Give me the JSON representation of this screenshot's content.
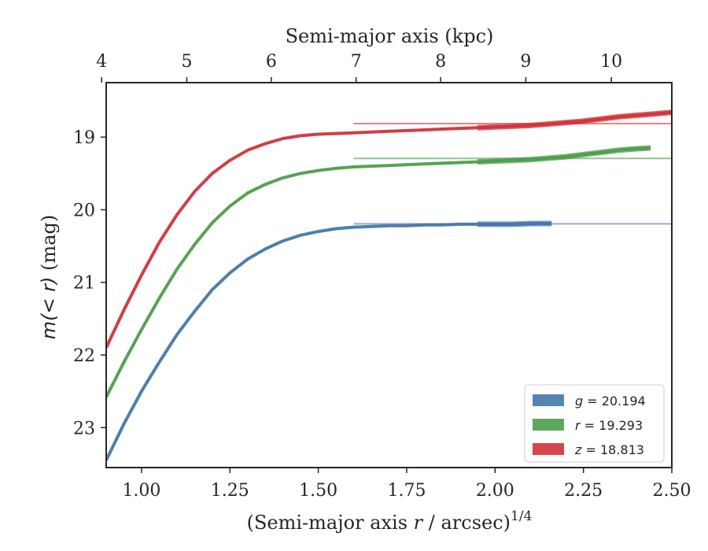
{
  "chart_data": {
    "type": "line",
    "xlabel_parts": {
      "pre": "(Semi-major axis ",
      "var": "r",
      "post": " / arcsec)",
      "sup": "1/4"
    },
    "ylabel_parts": {
      "pre": "m",
      "mid": "(< r)",
      "post": " (mag)"
    },
    "top_xlabel": "Semi-major axis (kpc)",
    "xlim": [
      0.9,
      2.5
    ],
    "ylim": [
      23.55,
      18.25
    ],
    "y_inverted": true,
    "x_ticks": [
      "1.00",
      "1.25",
      "1.50",
      "1.75",
      "2.00",
      "2.25",
      "2.50"
    ],
    "x_tick_values": [
      1.0,
      1.25,
      1.5,
      1.75,
      2.0,
      2.25,
      2.5
    ],
    "y_ticks": [
      "19",
      "20",
      "21",
      "22",
      "23"
    ],
    "y_tick_values": [
      19,
      20,
      21,
      22,
      23
    ],
    "top_ticks": [
      "4",
      "5",
      "6",
      "7",
      "8",
      "9",
      "10"
    ],
    "top_tick_x_positions": [
      0.887,
      1.128,
      1.367,
      1.607,
      1.846,
      2.087,
      2.329
    ],
    "legend_position": "lower-right",
    "grid": false,
    "series": [
      {
        "name": "g = 20.194",
        "band": "g",
        "value": "20.194",
        "color": "#4477a8",
        "asymptote": 20.194,
        "x": [
          0.9,
          0.95,
          1.0,
          1.05,
          1.1,
          1.15,
          1.2,
          1.25,
          1.3,
          1.35,
          1.4,
          1.45,
          1.5,
          1.55,
          1.6,
          1.65,
          1.7,
          1.75,
          1.8,
          1.85,
          1.9,
          1.95,
          2.0,
          2.05,
          2.1,
          2.16
        ],
        "y": [
          23.45,
          22.95,
          22.5,
          22.1,
          21.72,
          21.4,
          21.1,
          20.87,
          20.68,
          20.54,
          20.43,
          20.35,
          20.3,
          20.26,
          20.24,
          20.23,
          20.22,
          20.22,
          20.21,
          20.21,
          20.2,
          20.2,
          20.2,
          20.2,
          20.19,
          20.19
        ]
      },
      {
        "name": "r = 19.293",
        "band": "r",
        "value": "19.293",
        "color": "#4d9e4a",
        "asymptote": 19.293,
        "x": [
          0.9,
          0.95,
          1.0,
          1.05,
          1.1,
          1.15,
          1.2,
          1.25,
          1.3,
          1.35,
          1.4,
          1.45,
          1.5,
          1.55,
          1.6,
          1.65,
          1.7,
          1.75,
          1.8,
          1.85,
          1.9,
          1.95,
          2.0,
          2.05,
          2.1,
          2.15,
          2.2,
          2.25,
          2.3,
          2.35,
          2.4,
          2.44
        ],
        "y": [
          22.58,
          22.1,
          21.65,
          21.22,
          20.82,
          20.48,
          20.18,
          19.95,
          19.77,
          19.65,
          19.56,
          19.5,
          19.46,
          19.43,
          19.41,
          19.4,
          19.39,
          19.38,
          19.37,
          19.36,
          19.35,
          19.34,
          19.33,
          19.32,
          19.31,
          19.29,
          19.27,
          19.24,
          19.21,
          19.18,
          19.16,
          19.15
        ]
      },
      {
        "name": "z = 18.813",
        "band": "z",
        "value": "18.813",
        "color": "#d1333a",
        "asymptote": 18.813,
        "x": [
          0.9,
          0.95,
          1.0,
          1.05,
          1.1,
          1.15,
          1.2,
          1.25,
          1.3,
          1.35,
          1.4,
          1.45,
          1.5,
          1.55,
          1.6,
          1.65,
          1.7,
          1.75,
          1.8,
          1.85,
          1.9,
          1.95,
          2.0,
          2.05,
          2.1,
          2.15,
          2.2,
          2.25,
          2.3,
          2.35,
          2.4,
          2.45,
          2.5
        ],
        "y": [
          21.9,
          21.38,
          20.9,
          20.45,
          20.07,
          19.75,
          19.5,
          19.32,
          19.18,
          19.09,
          19.02,
          18.98,
          18.96,
          18.95,
          18.94,
          18.93,
          18.92,
          18.91,
          18.9,
          18.89,
          18.88,
          18.87,
          18.86,
          18.85,
          18.84,
          18.82,
          18.8,
          18.78,
          18.75,
          18.72,
          18.7,
          18.68,
          18.66
        ]
      }
    ]
  }
}
